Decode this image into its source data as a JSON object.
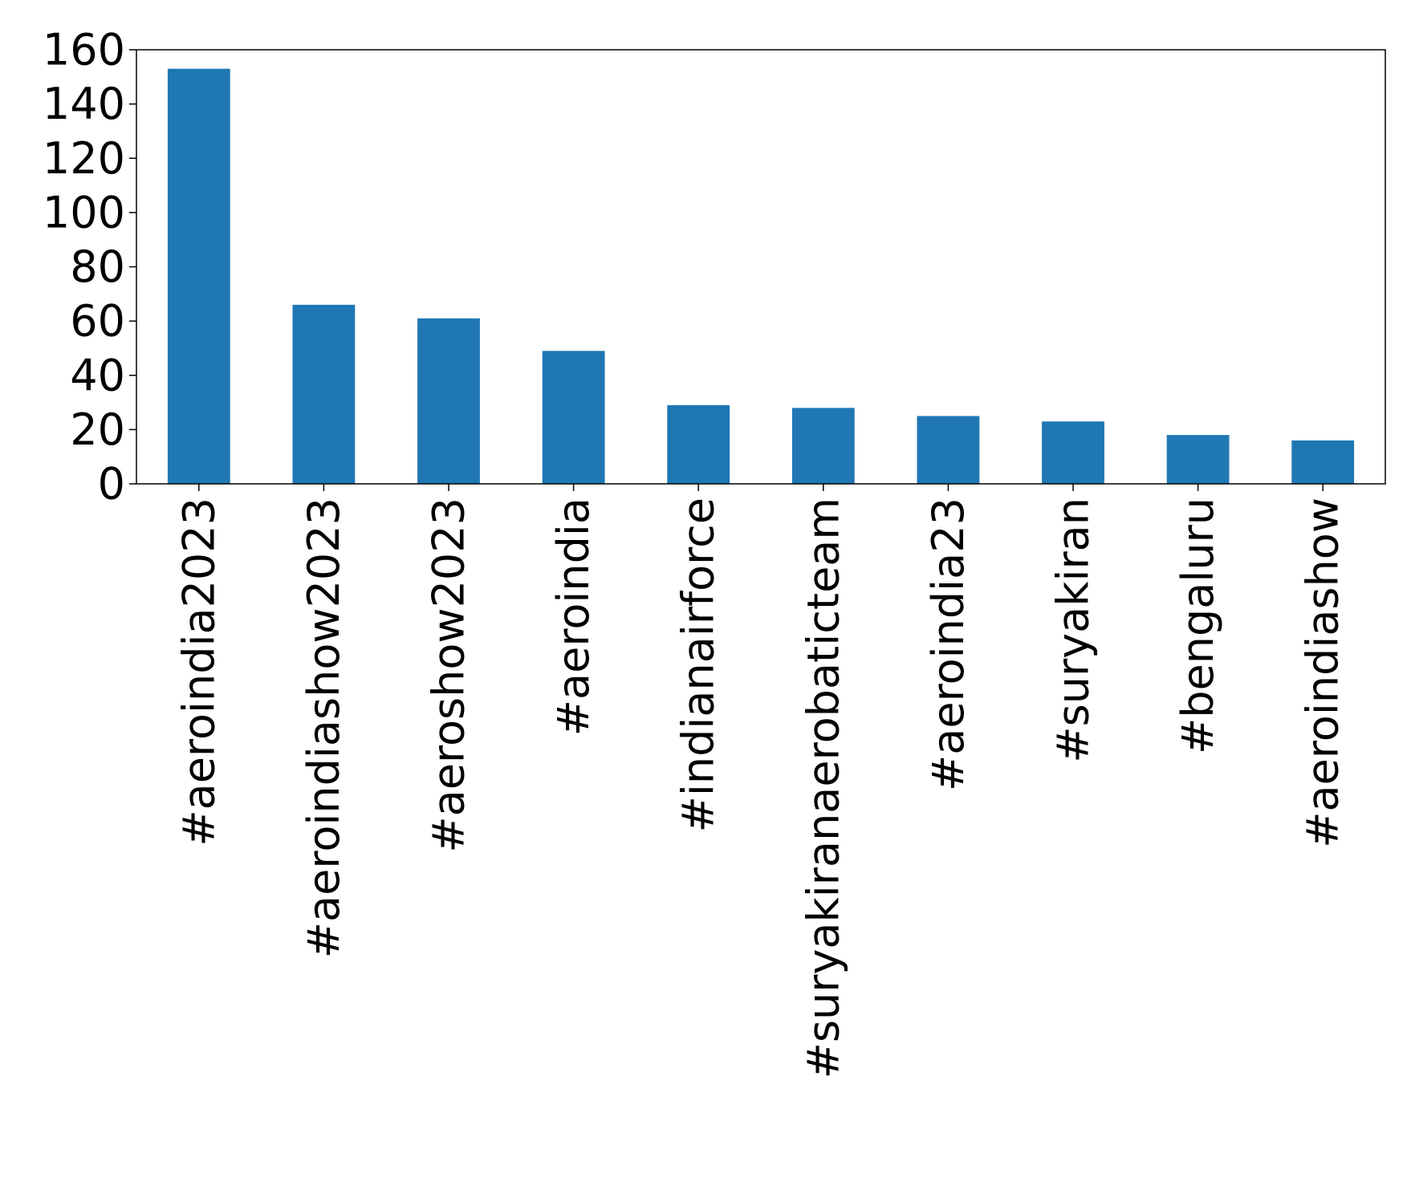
{
  "chart_data": {
    "type": "bar",
    "title": "",
    "xlabel": "",
    "ylabel": "",
    "categories": [
      "#aeroindia2023",
      "#aeroindiashow2023",
      "#aeroshow2023",
      "#aeroindia",
      "#indianairforce",
      "#suryakiranaerobaticteam",
      "#aeroindia23",
      "#suryakiran",
      "#bengaluru",
      "#aeroindiashow"
    ],
    "values": [
      153,
      66,
      61,
      49,
      29,
      28,
      25,
      23,
      18,
      16
    ],
    "ylim": [
      0,
      160
    ],
    "yticks": [
      0,
      20,
      40,
      60,
      80,
      100,
      120,
      140,
      160
    ],
    "grid": false,
    "legend": "none",
    "bar_color": "#1f77b4",
    "axis_color": "#000000"
  }
}
